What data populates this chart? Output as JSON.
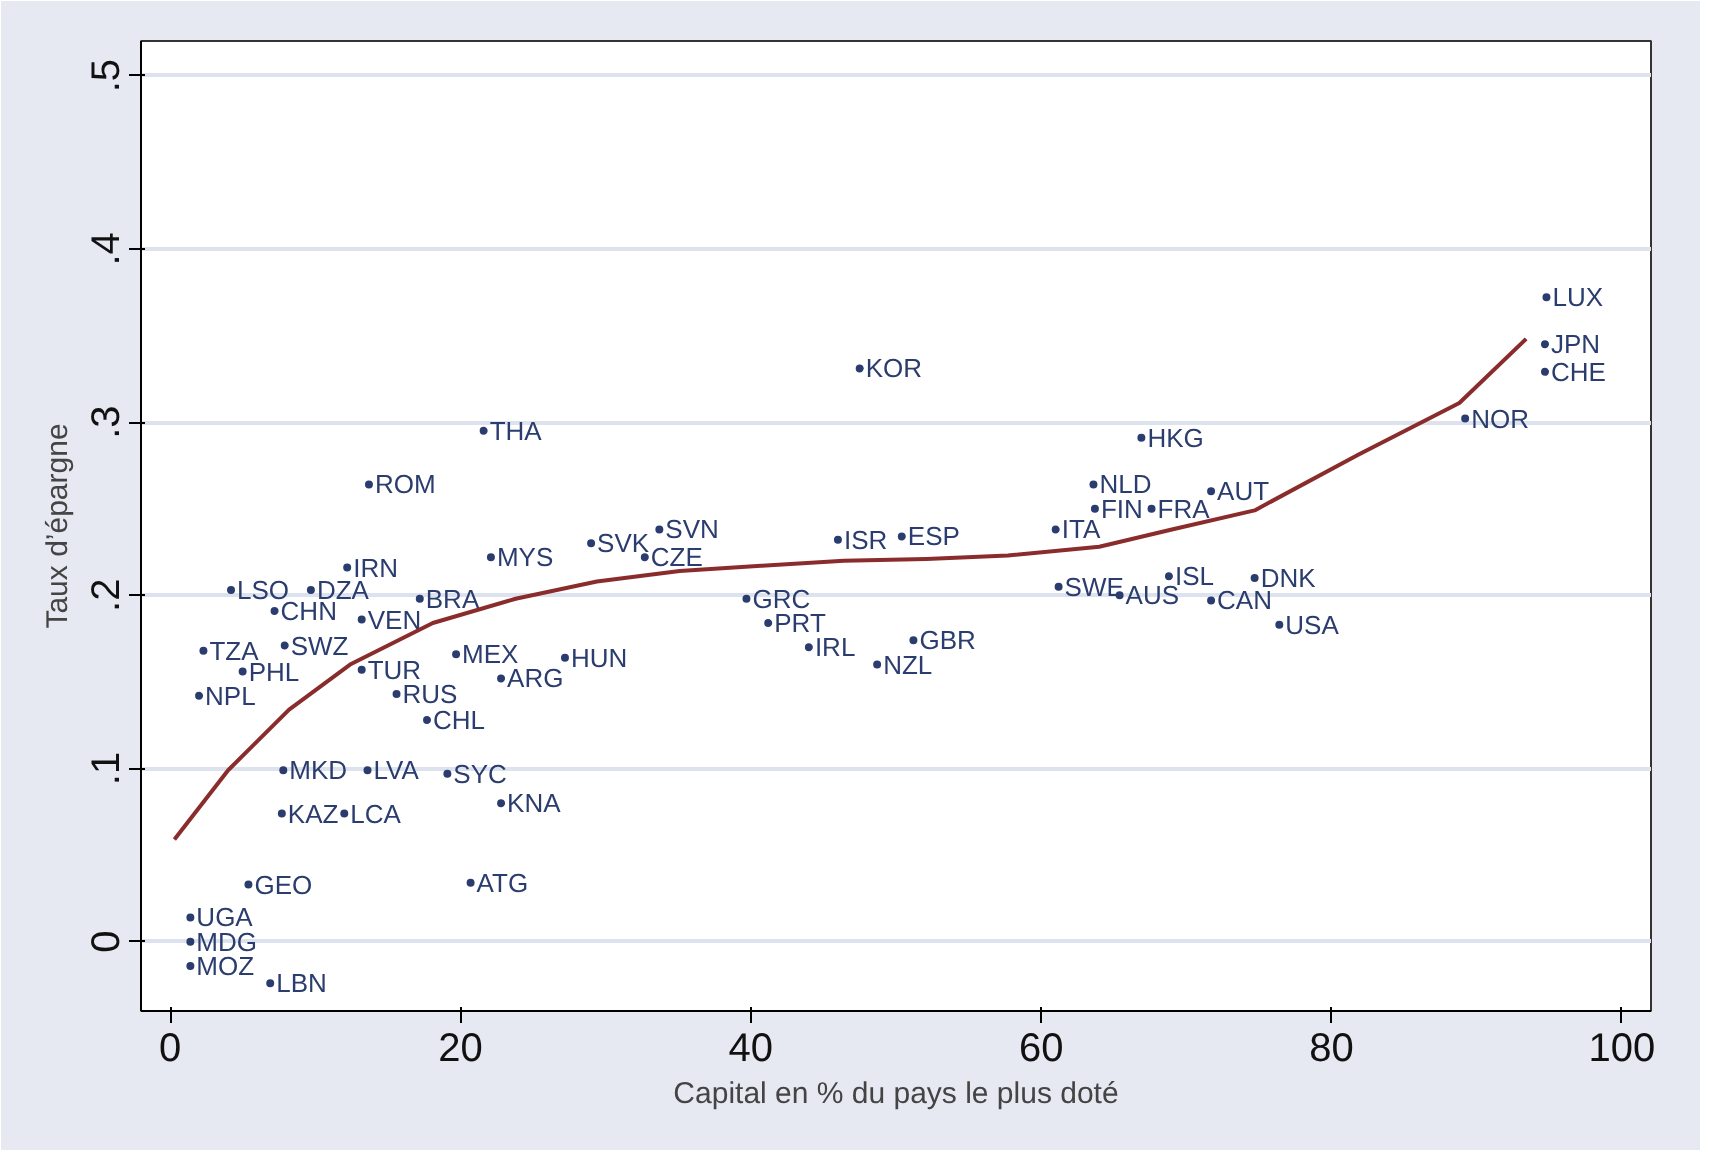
{
  "chart_data": {
    "type": "scatter",
    "xlabel": "Capital en % du pays le plus doté",
    "ylabel": "Taux d’épargne",
    "xlim": [
      -2,
      102
    ],
    "ylim": [
      -0.04,
      0.52
    ],
    "xticks": [
      0,
      20,
      40,
      60,
      80,
      100
    ],
    "yticks": [
      0,
      {
        "value": 0.1,
        "label": ".1"
      },
      {
        "value": 0.2,
        "label": ".2"
      },
      {
        "value": 0.3,
        "label": ".3"
      },
      {
        "value": 0.4,
        "label": ".4"
      },
      {
        "value": 0.5,
        "label": ".5"
      }
    ],
    "grid": "y",
    "series": [
      {
        "color": "#2b3d6e",
        "marker": "circle",
        "x": [
          94.8,
          94.7,
          94.7,
          89.2,
          66.9,
          63.6,
          63.7,
          67.6,
          71.7,
          61.0,
          61.2,
          68.8,
          65.4,
          71.7,
          74.7,
          76.4,
          47.5,
          46.0,
          50.4,
          33.7,
          29.0,
          32.7,
          39.7,
          41.2,
          44.0,
          51.2,
          48.7,
          27.2,
          22.8,
          22.1,
          21.6,
          13.7,
          12.2,
          9.7,
          4.2,
          7.2,
          2.3,
          7.9,
          13.2,
          17.2,
          19.7,
          13.2,
          15.6,
          2.0,
          5.0,
          13.6,
          19.1,
          22.8,
          7.8,
          7.7,
          12.0,
          20.7,
          1.4,
          1.4,
          1.4,
          6.9,
          17.7,
          5.4
        ],
        "values": [
          0.372,
          0.345,
          0.329,
          0.302,
          0.291,
          0.264,
          0.25,
          0.25,
          0.26,
          0.238,
          0.205,
          0.211,
          0.2,
          0.197,
          0.21,
          0.183,
          0.331,
          0.232,
          0.234,
          0.238,
          0.23,
          0.222,
          0.198,
          0.184,
          0.17,
          0.174,
          0.16,
          0.164,
          0.152,
          0.222,
          0.295,
          0.264,
          0.216,
          0.203,
          0.203,
          0.191,
          0.168,
          0.171,
          0.186,
          0.198,
          0.166,
          0.157,
          0.143,
          0.142,
          0.156,
          0.099,
          0.097,
          0.08,
          0.099,
          0.074,
          0.074,
          0.034,
          0.014,
          0.0,
          -0.014,
          -0.024,
          0.128,
          0.033
        ],
        "value_labels": [
          "LUX",
          "JPN",
          "CHE",
          "NOR",
          "HKG",
          "NLD",
          "FIN",
          "FRA",
          "AUT",
          "ITA",
          "SWE",
          "ISL",
          "AUS",
          "CAN",
          "DNK",
          "USA",
          "KOR",
          "ISR",
          "ESP",
          "SVN",
          "SVK",
          "CZE",
          "GRC",
          "PRT",
          "IRL",
          "GBR",
          "NZL",
          "HUN",
          "ARG",
          "MYS",
          "THA",
          "ROM",
          "IRN",
          "DZA",
          "LSO",
          "CHN",
          "TZA",
          "SWZ",
          "VEN",
          "BRA",
          "MEX",
          "TUR",
          "RUS",
          "NPL",
          "PHL",
          "LVA",
          "SYC",
          "KNA",
          "MKD",
          "KAZ",
          "LCA",
          "ATG",
          "UGA",
          "MDG",
          "MOZ",
          "LBN",
          "CHL",
          "GEO"
        ]
      },
      {
        "type": "line",
        "color": "#8b2c2c",
        "x": [
          0.3,
          4,
          8.2,
          12.4,
          18.1,
          23.8,
          29.4,
          35.1,
          40.7,
          46.4,
          52.1,
          57.7,
          64.0,
          69.0,
          74.7,
          81.8,
          88.8,
          93.4
        ],
        "values": [
          0.059,
          0.099,
          0.134,
          0.16,
          0.184,
          0.198,
          0.208,
          0.214,
          0.217,
          0.22,
          0.221,
          0.223,
          0.228,
          0.238,
          0.249,
          0.281,
          0.311,
          0.348
        ]
      }
    ]
  }
}
